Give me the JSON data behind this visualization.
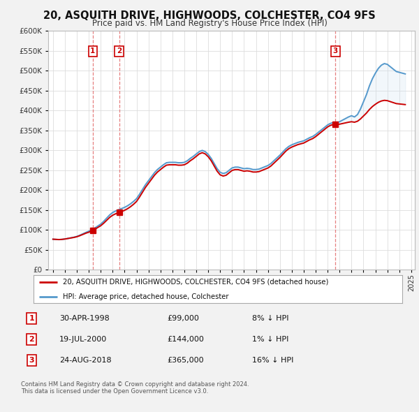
{
  "title": "20, ASQUITH DRIVE, HIGHWOODS, COLCHESTER, CO4 9FS",
  "subtitle": "Price paid vs. HM Land Registry's House Price Index (HPI)",
  "bg_color": "#f2f2f2",
  "plot_bg_color": "#ffffff",
  "red_line_color": "#cc0000",
  "blue_line_color": "#5599cc",
  "fill_color": "#cce0f0",
  "grid_color": "#dddddd",
  "ylim": [
    0,
    600000
  ],
  "xlim_left": 1994.6,
  "xlim_right": 2025.3,
  "yticks": [
    0,
    50000,
    100000,
    150000,
    200000,
    250000,
    300000,
    350000,
    400000,
    450000,
    500000,
    550000,
    600000
  ],
  "ytick_labels": [
    "£0",
    "£50K",
    "£100K",
    "£150K",
    "£200K",
    "£250K",
    "£300K",
    "£350K",
    "£400K",
    "£450K",
    "£500K",
    "£550K",
    "£600K"
  ],
  "transactions": [
    {
      "num": 1,
      "date": "30-APR-1998",
      "x": 1998.33,
      "price": 99000,
      "pct": "8%",
      "dir": "↓"
    },
    {
      "num": 2,
      "date": "19-JUL-2000",
      "x": 2000.54,
      "price": 144000,
      "pct": "1%",
      "dir": "↓"
    },
    {
      "num": 3,
      "date": "24-AUG-2018",
      "x": 2018.65,
      "price": 365000,
      "pct": "16%",
      "dir": "↓"
    }
  ],
  "legend_line1": "20, ASQUITH DRIVE, HIGHWOODS, COLCHESTER, CO4 9FS (detached house)",
  "legend_line2": "HPI: Average price, detached house, Colchester",
  "footer": "Contains HM Land Registry data © Crown copyright and database right 2024.\nThis data is licensed under the Open Government Licence v3.0.",
  "hpi_data_x": [
    1995.0,
    1995.25,
    1995.5,
    1995.75,
    1996.0,
    1996.25,
    1996.5,
    1996.75,
    1997.0,
    1997.25,
    1997.5,
    1997.75,
    1998.0,
    1998.25,
    1998.5,
    1998.75,
    1999.0,
    1999.25,
    1999.5,
    1999.75,
    2000.0,
    2000.25,
    2000.5,
    2000.75,
    2001.0,
    2001.25,
    2001.5,
    2001.75,
    2002.0,
    2002.25,
    2002.5,
    2002.75,
    2003.0,
    2003.25,
    2003.5,
    2003.75,
    2004.0,
    2004.25,
    2004.5,
    2004.75,
    2005.0,
    2005.25,
    2005.5,
    2005.75,
    2006.0,
    2006.25,
    2006.5,
    2006.75,
    2007.0,
    2007.25,
    2007.5,
    2007.75,
    2008.0,
    2008.25,
    2008.5,
    2008.75,
    2009.0,
    2009.25,
    2009.5,
    2009.75,
    2010.0,
    2010.25,
    2010.5,
    2010.75,
    2011.0,
    2011.25,
    2011.5,
    2011.75,
    2012.0,
    2012.25,
    2012.5,
    2012.75,
    2013.0,
    2013.25,
    2013.5,
    2013.75,
    2014.0,
    2014.25,
    2014.5,
    2014.75,
    2015.0,
    2015.25,
    2015.5,
    2015.75,
    2016.0,
    2016.25,
    2016.5,
    2016.75,
    2017.0,
    2017.25,
    2017.5,
    2017.75,
    2018.0,
    2018.25,
    2018.5,
    2018.75,
    2019.0,
    2019.25,
    2019.5,
    2019.75,
    2020.0,
    2020.25,
    2020.5,
    2020.75,
    2021.0,
    2021.25,
    2021.5,
    2021.75,
    2022.0,
    2022.25,
    2022.5,
    2022.75,
    2023.0,
    2023.25,
    2023.5,
    2023.75,
    2024.0,
    2024.25,
    2024.5
  ],
  "hpi_data_y": [
    77000,
    76500,
    76000,
    76500,
    77500,
    79000,
    80500,
    82000,
    84000,
    87000,
    90500,
    94000,
    97000,
    100500,
    105000,
    110000,
    115000,
    122000,
    130000,
    138000,
    144000,
    148000,
    151000,
    154000,
    157000,
    161000,
    166000,
    172000,
    179000,
    190000,
    202000,
    214000,
    224000,
    234000,
    244000,
    252000,
    258000,
    264000,
    269000,
    270000,
    270000,
    270000,
    269000,
    269000,
    270000,
    274000,
    280000,
    285000,
    291000,
    297000,
    300000,
    297000,
    290000,
    280000,
    267000,
    254000,
    245000,
    242000,
    244000,
    250000,
    256000,
    258000,
    258000,
    256000,
    254000,
    255000,
    254000,
    252000,
    252000,
    253000,
    256000,
    259000,
    262000,
    267000,
    274000,
    281000,
    288000,
    296000,
    304000,
    310000,
    314000,
    317000,
    320000,
    322000,
    324000,
    328000,
    332000,
    335000,
    340000,
    346000,
    352000,
    358000,
    364000,
    368000,
    370000,
    370000,
    372000,
    376000,
    380000,
    384000,
    387000,
    384000,
    390000,
    404000,
    422000,
    440000,
    462000,
    480000,
    494000,
    506000,
    514000,
    518000,
    516000,
    510000,
    504000,
    498000,
    496000,
    494000,
    492000
  ],
  "price_data_x": [
    1995.0,
    1998.33,
    2000.54,
    2018.65,
    2024.5
  ],
  "price_data_y": [
    77000,
    99000,
    144000,
    365000,
    415000
  ]
}
